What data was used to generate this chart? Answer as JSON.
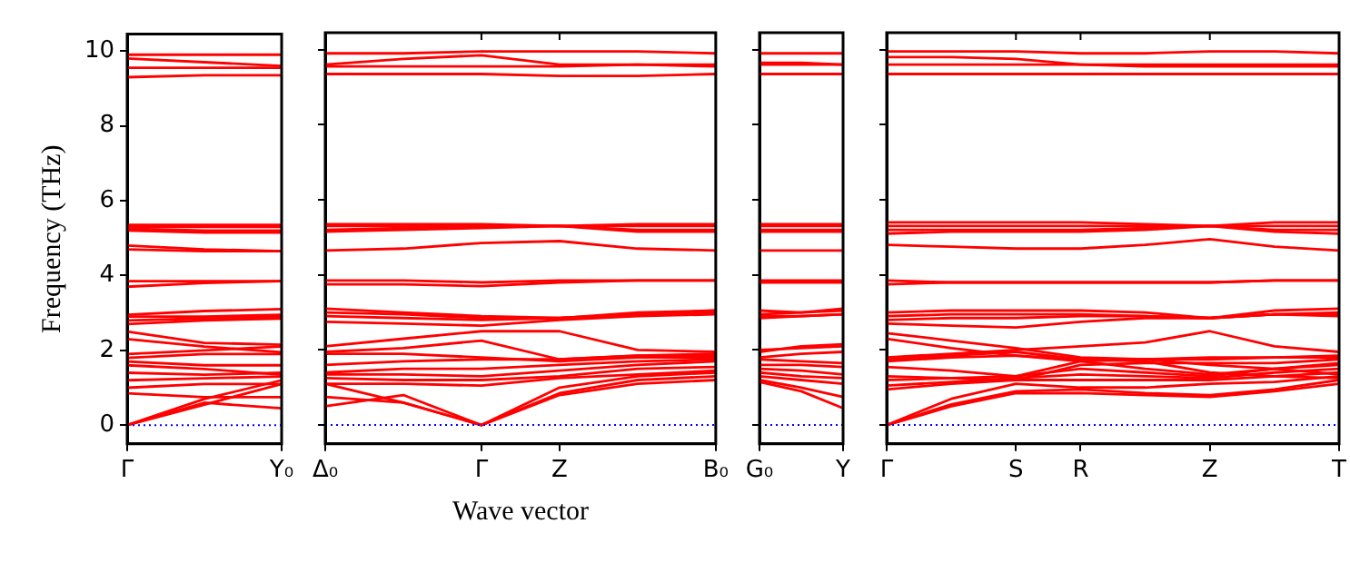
{
  "chart_data": [
    {
      "type": "line",
      "ylabel": "Frequency (THz)",
      "categories": [
        "Γ",
        null,
        "Y₀"
      ],
      "ylim": [
        -0.5,
        10.45
      ],
      "yticks": [
        0,
        2,
        4,
        6,
        8,
        10
      ],
      "ref_lines": [
        {
          "axis": "y",
          "value": 0,
          "color": "#0000ff",
          "line_style": "dotted"
        }
      ],
      "series": [
        {
          "color": "#ff0000",
          "values": [
            9.9,
            9.9,
            9.9
          ]
        },
        {
          "color": "#ff0000",
          "values": [
            9.8,
            9.7,
            9.6
          ]
        },
        {
          "color": "#ff0000",
          "values": [
            9.55,
            9.55,
            9.55
          ]
        },
        {
          "color": "#ff0000",
          "values": [
            9.3,
            9.35,
            9.35
          ]
        },
        {
          "color": "#ff0000",
          "values": [
            5.35,
            5.35,
            5.35
          ]
        },
        {
          "color": "#ff0000",
          "values": [
            5.3,
            5.3,
            5.3
          ]
        },
        {
          "color": "#ff0000",
          "values": [
            5.25,
            5.2,
            5.2
          ]
        },
        {
          "color": "#ff0000",
          "values": [
            5.2,
            5.15,
            5.15
          ]
        },
        {
          "color": "#ff0000",
          "values": [
            4.8,
            4.7,
            4.65
          ]
        },
        {
          "color": "#ff0000",
          "values": [
            4.7,
            4.65,
            4.65
          ]
        },
        {
          "color": "#ff0000",
          "values": [
            3.85,
            3.85,
            3.85
          ]
        },
        {
          "color": "#ff0000",
          "values": [
            3.7,
            3.8,
            3.85
          ]
        },
        {
          "color": "#ff0000",
          "values": [
            2.95,
            3.05,
            3.1
          ]
        },
        {
          "color": "#ff0000",
          "values": [
            2.9,
            2.9,
            2.95
          ]
        },
        {
          "color": "#ff0000",
          "values": [
            2.8,
            2.85,
            2.9
          ]
        },
        {
          "color": "#ff0000",
          "values": [
            2.7,
            2.8,
            2.85
          ]
        },
        {
          "color": "#ff0000",
          "values": [
            0,
            0.6,
            0.45
          ]
        },
        {
          "color": "#ff0000",
          "values": [
            0,
            0.55,
            1.1
          ]
        },
        {
          "color": "#ff0000",
          "values": [
            0,
            0.7,
            1.2
          ]
        },
        {
          "color": "#ff0000",
          "values": [
            0.85,
            0.75,
            0.75
          ]
        },
        {
          "color": "#ff0000",
          "values": [
            1.0,
            1.1,
            1.1
          ]
        },
        {
          "color": "#ff0000",
          "values": [
            1.2,
            1.25,
            1.3
          ]
        },
        {
          "color": "#ff0000",
          "values": [
            1.4,
            1.35,
            1.4
          ]
        },
        {
          "color": "#ff0000",
          "values": [
            1.6,
            1.5,
            1.35
          ]
        },
        {
          "color": "#ff0000",
          "values": [
            1.7,
            1.6,
            1.6
          ]
        },
        {
          "color": "#ff0000",
          "values": [
            1.8,
            1.9,
            1.9
          ]
        },
        {
          "color": "#ff0000",
          "values": [
            1.9,
            2.0,
            2.1
          ]
        },
        {
          "color": "#ff0000",
          "values": [
            2.3,
            2.1,
            1.95
          ]
        },
        {
          "color": "#ff0000",
          "values": [
            2.5,
            2.2,
            2.15
          ]
        }
      ]
    },
    {
      "type": "line",
      "tick_labels": "x",
      "xlabel": "Wave vector",
      "categories": [
        "Δ₀",
        null,
        "Γ",
        "Z",
        null,
        "B₀"
      ],
      "ylim": [
        -0.5,
        10.45
      ],
      "yticks": [
        0,
        2,
        4,
        6,
        8,
        10
      ],
      "ref_lines": [
        {
          "axis": "y",
          "value": 0,
          "color": "#0000ff",
          "line_style": "dotted"
        }
      ],
      "series": [
        {
          "color": "#ff0000",
          "values": [
            9.9,
            9.9,
            9.95,
            9.95,
            9.95,
            9.9
          ]
        },
        {
          "color": "#ff0000",
          "values": [
            9.6,
            9.75,
            9.85,
            9.6,
            9.6,
            9.6
          ]
        },
        {
          "color": "#ff0000",
          "values": [
            9.55,
            9.55,
            9.55,
            9.55,
            9.6,
            9.55
          ]
        },
        {
          "color": "#ff0000",
          "values": [
            9.35,
            9.35,
            9.35,
            9.3,
            9.3,
            9.35
          ]
        },
        {
          "color": "#ff0000",
          "values": [
            5.35,
            5.35,
            5.35,
            5.3,
            5.35,
            5.35
          ]
        },
        {
          "color": "#ff0000",
          "values": [
            5.3,
            5.3,
            5.3,
            5.3,
            5.3,
            5.3
          ]
        },
        {
          "color": "#ff0000",
          "values": [
            5.2,
            5.25,
            5.3,
            5.3,
            5.2,
            5.2
          ]
        },
        {
          "color": "#ff0000",
          "values": [
            5.15,
            5.2,
            5.25,
            5.3,
            5.15,
            5.15
          ]
        },
        {
          "color": "#ff0000",
          "values": [
            4.65,
            4.7,
            4.85,
            4.9,
            4.7,
            4.65
          ]
        },
        {
          "color": "#ff0000",
          "values": [
            3.85,
            3.85,
            3.8,
            3.85,
            3.85,
            3.85
          ]
        },
        {
          "color": "#ff0000",
          "values": [
            3.75,
            3.75,
            3.7,
            3.8,
            3.85,
            3.85
          ]
        },
        {
          "color": "#ff0000",
          "values": [
            3.1,
            3.0,
            2.9,
            2.85,
            2.95,
            3.05
          ]
        },
        {
          "color": "#ff0000",
          "values": [
            3.0,
            2.95,
            2.85,
            2.85,
            3.0,
            3.05
          ]
        },
        {
          "color": "#ff0000",
          "values": [
            2.9,
            2.85,
            2.8,
            2.85,
            2.95,
            3.0
          ]
        },
        {
          "color": "#ff0000",
          "values": [
            2.75,
            2.7,
            2.65,
            2.8,
            2.9,
            2.95
          ]
        },
        {
          "color": "#ff0000",
          "values": [
            0.5,
            0.8,
            0,
            0.8,
            1.1,
            1.2
          ]
        },
        {
          "color": "#ff0000",
          "values": [
            0.75,
            0.6,
            0,
            0.85,
            1.2,
            1.3
          ]
        },
        {
          "color": "#ff0000",
          "values": [
            1.1,
            0.6,
            0,
            1.0,
            1.3,
            1.4
          ]
        },
        {
          "color": "#ff0000",
          "values": [
            1.1,
            1.1,
            1.05,
            1.25,
            1.35,
            1.45
          ]
        },
        {
          "color": "#ff0000",
          "values": [
            1.25,
            1.2,
            1.2,
            1.3,
            1.5,
            1.55
          ]
        },
        {
          "color": "#ff0000",
          "values": [
            1.35,
            1.35,
            1.3,
            1.45,
            1.6,
            1.7
          ]
        },
        {
          "color": "#ff0000",
          "values": [
            1.4,
            1.5,
            1.5,
            1.6,
            1.7,
            1.75
          ]
        },
        {
          "color": "#ff0000",
          "values": [
            1.6,
            1.7,
            1.75,
            1.75,
            1.85,
            1.85
          ]
        },
        {
          "color": "#ff0000",
          "values": [
            1.9,
            1.9,
            1.8,
            1.7,
            1.8,
            1.8
          ]
        },
        {
          "color": "#ff0000",
          "values": [
            2.1,
            2.3,
            2.5,
            2.5,
            2.0,
            1.95
          ]
        },
        {
          "color": "#ff0000",
          "values": [
            1.95,
            2.05,
            2.25,
            1.75,
            1.85,
            1.9
          ]
        }
      ]
    },
    {
      "type": "line",
      "tick_labels": "x",
      "categories": [
        "G₀",
        null,
        "Y"
      ],
      "ylim": [
        -0.5,
        10.45
      ],
      "yticks": [
        0,
        2,
        4,
        6,
        8,
        10
      ],
      "ref_lines": [
        {
          "axis": "y",
          "value": 0,
          "color": "#0000ff",
          "line_style": "dotted"
        }
      ],
      "series": [
        {
          "color": "#ff0000",
          "values": [
            9.9,
            9.9,
            9.9
          ]
        },
        {
          "color": "#ff0000",
          "values": [
            9.6,
            9.6,
            9.6
          ]
        },
        {
          "color": "#ff0000",
          "values": [
            9.65,
            9.65,
            9.6
          ]
        },
        {
          "color": "#ff0000",
          "values": [
            9.35,
            9.35,
            9.35
          ]
        },
        {
          "color": "#ff0000",
          "values": [
            5.35,
            5.35,
            5.35
          ]
        },
        {
          "color": "#ff0000",
          "values": [
            5.3,
            5.3,
            5.3
          ]
        },
        {
          "color": "#ff0000",
          "values": [
            5.2,
            5.2,
            5.2
          ]
        },
        {
          "color": "#ff0000",
          "values": [
            5.15,
            5.15,
            5.15
          ]
        },
        {
          "color": "#ff0000",
          "values": [
            4.65,
            4.65,
            4.65
          ]
        },
        {
          "color": "#ff0000",
          "values": [
            3.85,
            3.85,
            3.85
          ]
        },
        {
          "color": "#ff0000",
          "values": [
            3.8,
            3.8,
            3.8
          ]
        },
        {
          "color": "#ff0000",
          "values": [
            3.05,
            3.0,
            3.1
          ]
        },
        {
          "color": "#ff0000",
          "values": [
            2.95,
            3.0,
            3.05
          ]
        },
        {
          "color": "#ff0000",
          "values": [
            2.9,
            2.9,
            2.95
          ]
        },
        {
          "color": "#ff0000",
          "values": [
            2.85,
            2.9,
            2.95
          ]
        },
        {
          "color": "#ff0000",
          "values": [
            1.15,
            0.9,
            0.45
          ]
        },
        {
          "color": "#ff0000",
          "values": [
            1.2,
            1.0,
            0.75
          ]
        },
        {
          "color": "#ff0000",
          "values": [
            1.3,
            1.2,
            1.1
          ]
        },
        {
          "color": "#ff0000",
          "values": [
            1.4,
            1.3,
            1.25
          ]
        },
        {
          "color": "#ff0000",
          "values": [
            1.5,
            1.45,
            1.35
          ]
        },
        {
          "color": "#ff0000",
          "values": [
            1.6,
            1.6,
            1.55
          ]
        },
        {
          "color": "#ff0000",
          "values": [
            1.75,
            1.7,
            1.65
          ]
        },
        {
          "color": "#ff0000",
          "values": [
            1.8,
            1.9,
            1.95
          ]
        },
        {
          "color": "#ff0000",
          "values": [
            2.0,
            2.05,
            2.1
          ]
        },
        {
          "color": "#ff0000",
          "values": [
            1.95,
            2.1,
            2.15
          ]
        }
      ]
    },
    {
      "type": "line",
      "tick_labels": "x",
      "categories": [
        "Γ",
        null,
        "S",
        "R",
        null,
        "Z",
        null,
        "T"
      ],
      "ylim": [
        -0.5,
        10.45
      ],
      "yticks": [
        0,
        2,
        4,
        6,
        8,
        10
      ],
      "ref_lines": [
        {
          "axis": "y",
          "value": 0,
          "color": "#0000ff",
          "line_style": "dotted"
        }
      ],
      "series": [
        {
          "color": "#ff0000",
          "values": [
            9.95,
            9.95,
            9.95,
            9.9,
            9.9,
            9.95,
            9.95,
            9.9
          ]
        },
        {
          "color": "#ff0000",
          "values": [
            9.8,
            9.8,
            9.75,
            9.6,
            9.6,
            9.6,
            9.6,
            9.6
          ]
        },
        {
          "color": "#ff0000",
          "values": [
            9.6,
            9.6,
            9.6,
            9.6,
            9.55,
            9.55,
            9.55,
            9.55
          ]
        },
        {
          "color": "#ff0000",
          "values": [
            9.35,
            9.35,
            9.35,
            9.35,
            9.35,
            9.35,
            9.35,
            9.35
          ]
        },
        {
          "color": "#ff0000",
          "values": [
            5.4,
            5.4,
            5.4,
            5.4,
            5.35,
            5.3,
            5.4,
            5.4
          ]
        },
        {
          "color": "#ff0000",
          "values": [
            5.3,
            5.3,
            5.3,
            5.3,
            5.3,
            5.3,
            5.3,
            5.3
          ]
        },
        {
          "color": "#ff0000",
          "values": [
            5.2,
            5.2,
            5.2,
            5.2,
            5.25,
            5.3,
            5.2,
            5.2
          ]
        },
        {
          "color": "#ff0000",
          "values": [
            5.1,
            5.15,
            5.15,
            5.15,
            5.2,
            5.3,
            5.15,
            5.1
          ]
        },
        {
          "color": "#ff0000",
          "values": [
            4.8,
            4.75,
            4.7,
            4.7,
            4.8,
            4.95,
            4.75,
            4.65
          ]
        },
        {
          "color": "#ff0000",
          "values": [
            3.85,
            3.8,
            3.8,
            3.8,
            3.8,
            3.8,
            3.85,
            3.85
          ]
        },
        {
          "color": "#ff0000",
          "values": [
            3.75,
            3.8,
            3.8,
            3.8,
            3.8,
            3.8,
            3.85,
            3.85
          ]
        },
        {
          "color": "#ff0000",
          "values": [
            3.0,
            3.05,
            3.05,
            3.05,
            3.0,
            2.85,
            3.05,
            3.1
          ]
        },
        {
          "color": "#ff0000",
          "values": [
            2.9,
            2.95,
            2.95,
            2.95,
            2.9,
            2.85,
            2.95,
            3.0
          ]
        },
        {
          "color": "#ff0000",
          "values": [
            2.8,
            2.85,
            2.85,
            2.9,
            2.9,
            2.85,
            2.95,
            2.95
          ]
        },
        {
          "color": "#ff0000",
          "values": [
            2.7,
            2.65,
            2.6,
            2.75,
            2.85,
            2.85,
            2.95,
            2.9
          ]
        },
        {
          "color": "#ff0000",
          "values": [
            0,
            0.5,
            0.85,
            0.85,
            0.8,
            0.75,
            0.9,
            1.1
          ]
        },
        {
          "color": "#ff0000",
          "values": [
            0,
            0.55,
            0.9,
            0.95,
            0.85,
            0.8,
            0.95,
            1.2
          ]
        },
        {
          "color": "#ff0000",
          "values": [
            0,
            0.7,
            1.1,
            1.0,
            1.0,
            1.1,
            1.15,
            1.3
          ]
        },
        {
          "color": "#ff0000",
          "values": [
            0.95,
            1.1,
            1.2,
            1.2,
            1.2,
            1.2,
            1.3,
            1.4
          ]
        },
        {
          "color": "#ff0000",
          "values": [
            1.05,
            1.15,
            1.25,
            1.35,
            1.3,
            1.25,
            1.4,
            1.5
          ]
        },
        {
          "color": "#ff0000",
          "values": [
            1.2,
            1.25,
            1.3,
            1.5,
            1.4,
            1.3,
            1.5,
            1.6
          ]
        },
        {
          "color": "#ff0000",
          "values": [
            1.3,
            1.25,
            1.2,
            1.6,
            1.65,
            1.65,
            1.65,
            1.75
          ]
        },
        {
          "color": "#ff0000",
          "values": [
            1.55,
            1.45,
            1.3,
            1.7,
            1.75,
            1.8,
            1.8,
            1.85
          ]
        },
        {
          "color": "#ff0000",
          "values": [
            1.7,
            1.8,
            1.85,
            1.75,
            1.75,
            1.6,
            1.5,
            1.35
          ]
        },
        {
          "color": "#ff0000",
          "values": [
            1.75,
            1.85,
            1.95,
            1.75,
            1.7,
            1.4,
            1.3,
            1.25
          ]
        },
        {
          "color": "#ff0000",
          "values": [
            1.8,
            1.9,
            2.0,
            2.1,
            2.2,
            2.5,
            2.1,
            1.95
          ]
        },
        {
          "color": "#ff0000",
          "values": [
            2.3,
            2.05,
            1.85,
            1.7,
            1.5,
            1.35,
            1.5,
            1.65
          ]
        },
        {
          "color": "#ff0000",
          "values": [
            2.45,
            2.25,
            2.05,
            1.8,
            1.75,
            1.75,
            1.8,
            1.8
          ]
        }
      ]
    }
  ]
}
